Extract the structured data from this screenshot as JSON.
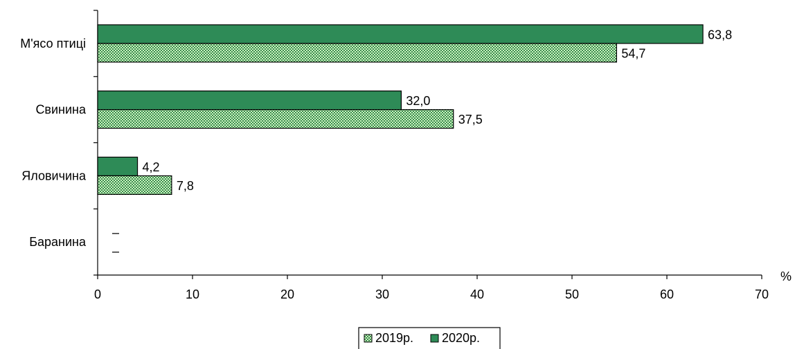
{
  "chart_data": {
    "type": "bar",
    "orientation": "horizontal",
    "categories": [
      "М'ясо птиці",
      "Свинина",
      "Яловичина",
      "Баранина"
    ],
    "series": [
      {
        "name": "2020р.",
        "values": [
          63.8,
          32.0,
          4.2,
          null
        ],
        "labels": [
          "63,8",
          "32,0",
          "4,2",
          "–"
        ],
        "color": "#2e8b57",
        "pattern": "solid"
      },
      {
        "name": "2019р.",
        "values": [
          54.7,
          37.5,
          7.8,
          null
        ],
        "labels": [
          "54,7",
          "37,5",
          "7,8",
          "–"
        ],
        "color": "#90ee90",
        "pattern": "checkered"
      }
    ],
    "xlim": [
      0,
      70
    ],
    "x_ticks": [
      "0",
      "10",
      "20",
      "30",
      "40",
      "50",
      "60",
      "70"
    ],
    "x_unit": "%",
    "legend": {
      "placement": "bottom-center",
      "order": [
        "2019р.",
        "2020р."
      ]
    },
    "grid": false
  }
}
